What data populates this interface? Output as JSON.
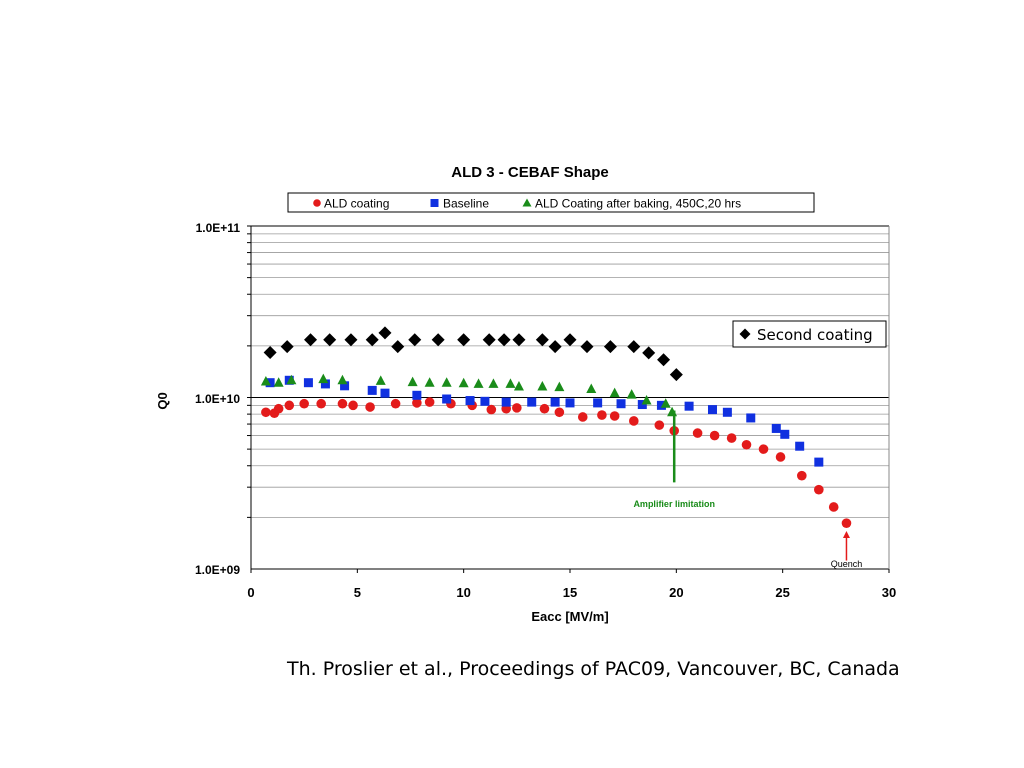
{
  "citation": "Th. Proslier et al., Proceedings of PAC09, Vancouver, BC, Canada",
  "chart_data": {
    "type": "scatter",
    "title": "ALD 3 - CEBAF Shape",
    "xlabel": "Eacc [MV/m]",
    "ylabel": "Q0",
    "yscale": "log",
    "xlim": [
      0,
      30
    ],
    "ylim": [
      1000000000.0,
      100000000000.0
    ],
    "x_ticks": [
      "0",
      "5",
      "10",
      "15",
      "20",
      "25",
      "30"
    ],
    "y_ticks": [
      "1.0E+09",
      "1.0E+10",
      "1.0E+11"
    ],
    "grid": "horizontal log grid",
    "legend_top": "top, boxed, single row",
    "legend_inset": "right, boxed",
    "series": [
      {
        "name": "ALD coating",
        "marker": "circle",
        "color": "#e31b1b",
        "legend": "top",
        "points": [
          [
            0.7,
            8200000000.0
          ],
          [
            1.1,
            8100000000.0
          ],
          [
            1.3,
            8600000000.0
          ],
          [
            1.8,
            9000000000.0
          ],
          [
            2.5,
            9200000000.0
          ],
          [
            3.3,
            9200000000.0
          ],
          [
            4.3,
            9200000000.0
          ],
          [
            4.8,
            9000000000.0
          ],
          [
            5.6,
            8800000000.0
          ],
          [
            6.8,
            9200000000.0
          ],
          [
            7.8,
            9300000000.0
          ],
          [
            8.4,
            9400000000.0
          ],
          [
            9.4,
            9200000000.0
          ],
          [
            10.4,
            9000000000.0
          ],
          [
            11.3,
            8500000000.0
          ],
          [
            12.0,
            8600000000.0
          ],
          [
            12.5,
            8700000000.0
          ],
          [
            13.8,
            8600000000.0
          ],
          [
            14.5,
            8200000000.0
          ],
          [
            15.6,
            7700000000.0
          ],
          [
            16.5,
            7900000000.0
          ],
          [
            17.1,
            7800000000.0
          ],
          [
            18.0,
            7300000000.0
          ],
          [
            19.2,
            6900000000.0
          ],
          [
            19.9,
            6400000000.0
          ],
          [
            21.0,
            6200000000.0
          ],
          [
            21.8,
            6000000000.0
          ],
          [
            22.6,
            5800000000.0
          ],
          [
            23.3,
            5300000000.0
          ],
          [
            24.1,
            5000000000.0
          ],
          [
            24.9,
            4500000000.0
          ],
          [
            25.9,
            3500000000.0
          ],
          [
            26.7,
            2900000000.0
          ],
          [
            27.4,
            2300000000.0
          ],
          [
            28.0,
            1850000000.0
          ]
        ]
      },
      {
        "name": "Baseline",
        "marker": "square",
        "color": "#1030e0",
        "legend": "top",
        "points": [
          [
            0.9,
            12200000000.0
          ],
          [
            1.8,
            12600000000.0
          ],
          [
            2.7,
            12200000000.0
          ],
          [
            3.5,
            12000000000.0
          ],
          [
            4.4,
            11700000000.0
          ],
          [
            5.7,
            11000000000.0
          ],
          [
            6.3,
            10600000000.0
          ],
          [
            7.8,
            10300000000.0
          ],
          [
            9.2,
            9800000000.0
          ],
          [
            10.3,
            9600000000.0
          ],
          [
            11.0,
            9500000000.0
          ],
          [
            12.0,
            9400000000.0
          ],
          [
            13.2,
            9400000000.0
          ],
          [
            14.3,
            9400000000.0
          ],
          [
            15.0,
            9300000000.0
          ],
          [
            16.3,
            9300000000.0
          ],
          [
            17.4,
            9200000000.0
          ],
          [
            18.4,
            9100000000.0
          ],
          [
            19.3,
            9000000000.0
          ],
          [
            20.6,
            8900000000.0
          ],
          [
            21.7,
            8500000000.0
          ],
          [
            22.4,
            8200000000.0
          ],
          [
            23.5,
            7600000000.0
          ],
          [
            24.7,
            6600000000.0
          ],
          [
            25.1,
            6100000000.0
          ],
          [
            25.8,
            5200000000.0
          ],
          [
            26.7,
            4200000000.0
          ]
        ]
      },
      {
        "name": "ALD Coating after baking, 450C,20 hrs",
        "marker": "triangle",
        "color": "#1a8c1a",
        "legend": "top",
        "points": [
          [
            0.7,
            12400000000.0
          ],
          [
            1.3,
            12200000000.0
          ],
          [
            1.9,
            12600000000.0
          ],
          [
            3.4,
            12800000000.0
          ],
          [
            4.3,
            12600000000.0
          ],
          [
            6.1,
            12500000000.0
          ],
          [
            7.6,
            12300000000.0
          ],
          [
            8.4,
            12200000000.0
          ],
          [
            9.2,
            12200000000.0
          ],
          [
            10.0,
            12100000000.0
          ],
          [
            10.7,
            12000000000.0
          ],
          [
            11.4,
            12000000000.0
          ],
          [
            12.2,
            12000000000.0
          ],
          [
            12.6,
            11600000000.0
          ],
          [
            13.7,
            11600000000.0
          ],
          [
            14.5,
            11500000000.0
          ],
          [
            16.0,
            11200000000.0
          ],
          [
            17.1,
            10600000000.0
          ],
          [
            17.9,
            10400000000.0
          ],
          [
            18.6,
            9600000000.0
          ],
          [
            19.5,
            9200000000.0
          ],
          [
            19.8,
            8200000000.0
          ]
        ]
      },
      {
        "name": "Second coating",
        "marker": "diamond",
        "color": "#000000",
        "legend": "inset",
        "points": [
          [
            0.9,
            18300000000.0
          ],
          [
            1.7,
            19800000000.0
          ],
          [
            2.8,
            21700000000.0
          ],
          [
            3.7,
            21700000000.0
          ],
          [
            4.7,
            21700000000.0
          ],
          [
            5.7,
            21700000000.0
          ],
          [
            6.3,
            23800000000.0
          ],
          [
            6.9,
            19800000000.0
          ],
          [
            7.7,
            21700000000.0
          ],
          [
            8.8,
            21700000000.0
          ],
          [
            10.0,
            21700000000.0
          ],
          [
            11.2,
            21700000000.0
          ],
          [
            11.9,
            21700000000.0
          ],
          [
            12.6,
            21700000000.0
          ],
          [
            13.7,
            21700000000.0
          ],
          [
            14.3,
            19800000000.0
          ],
          [
            15.0,
            21700000000.0
          ],
          [
            15.8,
            19800000000.0
          ],
          [
            16.9,
            19800000000.0
          ],
          [
            18.0,
            19800000000.0
          ],
          [
            18.7,
            18200000000.0
          ],
          [
            19.4,
            16600000000.0
          ],
          [
            20.0,
            13600000000.0
          ]
        ]
      }
    ],
    "annotations": [
      {
        "text": "Amplifier limitation",
        "color": "#1a8c1a",
        "x": 19.9,
        "y_from": 8400000000.0,
        "y_to": 3200000000.0,
        "text_y": 2300000000.0,
        "arrow": false
      },
      {
        "text": "Quench",
        "color": "#e31b1b",
        "x": 28.0,
        "y_from": 1120000000.0,
        "y_to": 1600000000.0,
        "text_y": 1030000000.0,
        "arrow": true
      }
    ]
  }
}
